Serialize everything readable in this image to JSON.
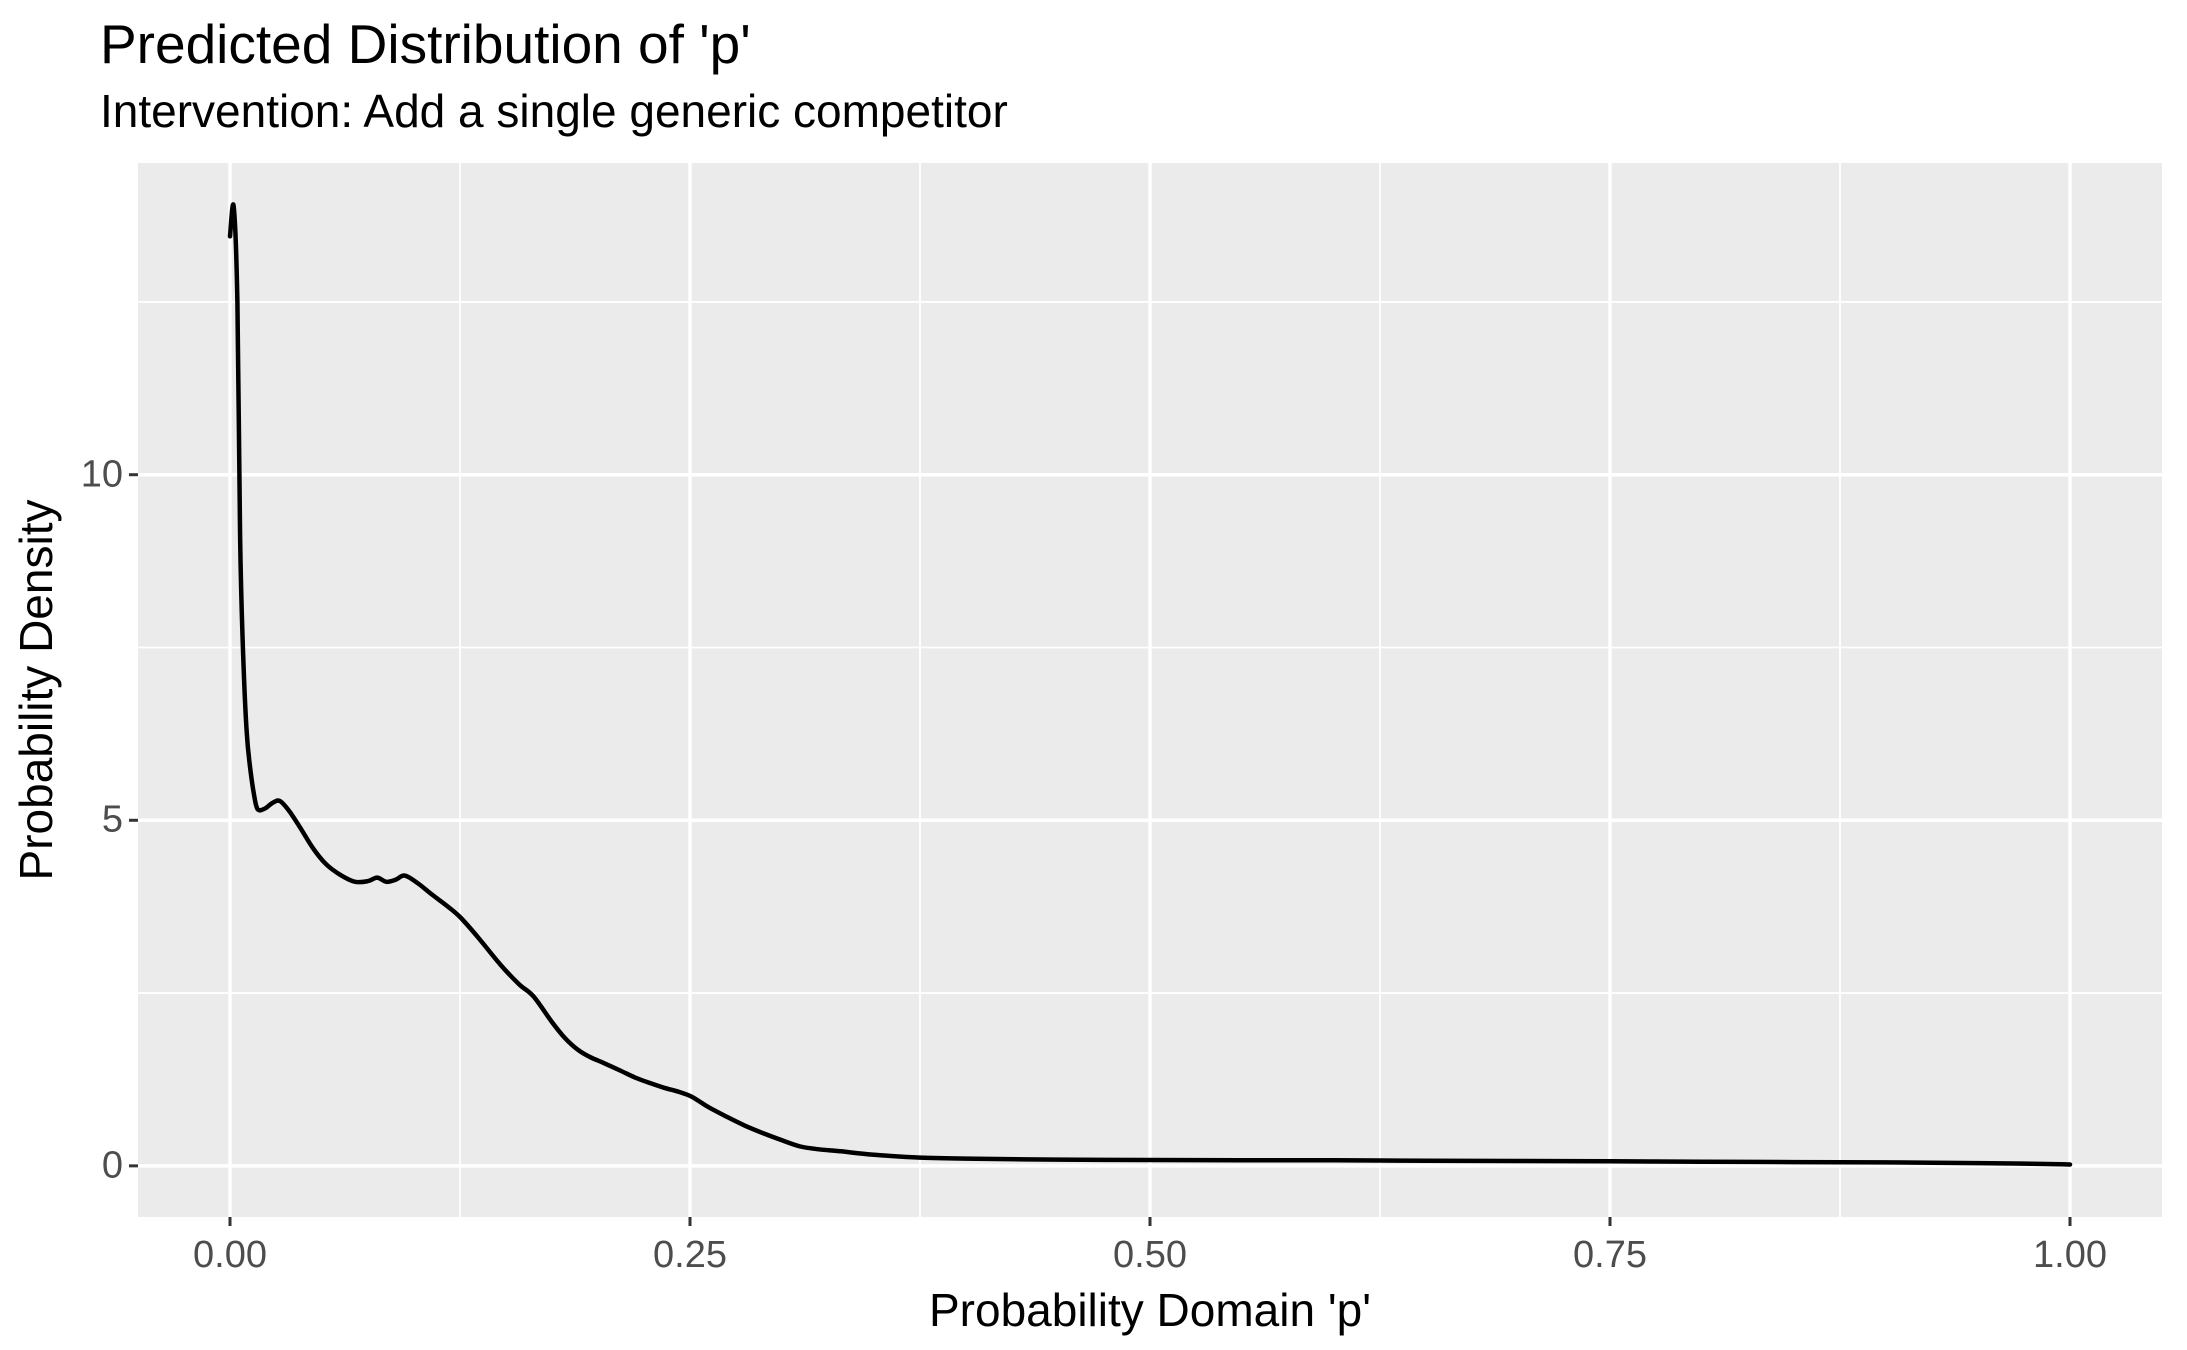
{
  "chart_data": {
    "type": "line",
    "title": "Predicted Distribution of 'p'",
    "subtitle": "Intervention: Add a single generic competitor",
    "xlabel": "Probability Domain 'p'",
    "ylabel": "Probability Density",
    "legend": false,
    "grid": true,
    "panel_background": "#EBEBEB",
    "grid_color": "#FFFFFF",
    "line_color": "#000000",
    "tick_mark_color": "#333333",
    "tick_label_color": "#4D4D4D",
    "xlim": [
      -0.05,
      1.05
    ],
    "ylim": [
      -0.74,
      14.51
    ],
    "x_ticks": [
      {
        "value": 0.0,
        "label": "0.00"
      },
      {
        "value": 0.25,
        "label": "0.25"
      },
      {
        "value": 0.5,
        "label": "0.50"
      },
      {
        "value": 0.75,
        "label": "0.75"
      },
      {
        "value": 1.0,
        "label": "1.00"
      }
    ],
    "y_ticks": [
      {
        "value": 0,
        "label": "0"
      },
      {
        "value": 5,
        "label": "5"
      },
      {
        "value": 10,
        "label": "10"
      }
    ],
    "x_minor_breaks": [
      0.125,
      0.375,
      0.625,
      0.875
    ],
    "y_minor_breaks": [
      2.5,
      7.5,
      12.5
    ],
    "series": [
      {
        "name": "density",
        "points": [
          [
            0.0,
            13.45
          ],
          [
            0.002,
            13.88
          ],
          [
            0.004,
            12.5
          ],
          [
            0.0055,
            9.1
          ],
          [
            0.007,
            7.5
          ],
          [
            0.009,
            6.3
          ],
          [
            0.011,
            5.75
          ],
          [
            0.013,
            5.38
          ],
          [
            0.015,
            5.16
          ],
          [
            0.019,
            5.17
          ],
          [
            0.023,
            5.25
          ],
          [
            0.027,
            5.28
          ],
          [
            0.032,
            5.14
          ],
          [
            0.038,
            4.9
          ],
          [
            0.045,
            4.6
          ],
          [
            0.052,
            4.37
          ],
          [
            0.06,
            4.21
          ],
          [
            0.068,
            4.11
          ],
          [
            0.075,
            4.12
          ],
          [
            0.08,
            4.17
          ],
          [
            0.085,
            4.11
          ],
          [
            0.09,
            4.14
          ],
          [
            0.095,
            4.2
          ],
          [
            0.102,
            4.09
          ],
          [
            0.11,
            3.92
          ],
          [
            0.118,
            3.76
          ],
          [
            0.125,
            3.6
          ],
          [
            0.135,
            3.3
          ],
          [
            0.147,
            2.91
          ],
          [
            0.157,
            2.63
          ],
          [
            0.165,
            2.45
          ],
          [
            0.175,
            2.08
          ],
          [
            0.182,
            1.85
          ],
          [
            0.189,
            1.68
          ],
          [
            0.196,
            1.57
          ],
          [
            0.203,
            1.49
          ],
          [
            0.212,
            1.38
          ],
          [
            0.22,
            1.28
          ],
          [
            0.228,
            1.2
          ],
          [
            0.236,
            1.13
          ],
          [
            0.244,
            1.07
          ],
          [
            0.251,
            1.0
          ],
          [
            0.26,
            0.85
          ],
          [
            0.27,
            0.71
          ],
          [
            0.28,
            0.58
          ],
          [
            0.29,
            0.47
          ],
          [
            0.3,
            0.37
          ],
          [
            0.31,
            0.28
          ],
          [
            0.32,
            0.24
          ],
          [
            0.332,
            0.21
          ],
          [
            0.35,
            0.16
          ],
          [
            0.375,
            0.12
          ],
          [
            0.4,
            0.105
          ],
          [
            0.45,
            0.09
          ],
          [
            0.5,
            0.085
          ],
          [
            0.55,
            0.082
          ],
          [
            0.6,
            0.08
          ],
          [
            0.65,
            0.075
          ],
          [
            0.7,
            0.07
          ],
          [
            0.75,
            0.066
          ],
          [
            0.8,
            0.06
          ],
          [
            0.85,
            0.055
          ],
          [
            0.9,
            0.05
          ],
          [
            0.95,
            0.04
          ],
          [
            0.975,
            0.032
          ],
          [
            0.995,
            0.024
          ],
          [
            1.0,
            0.02
          ]
        ]
      }
    ]
  }
}
